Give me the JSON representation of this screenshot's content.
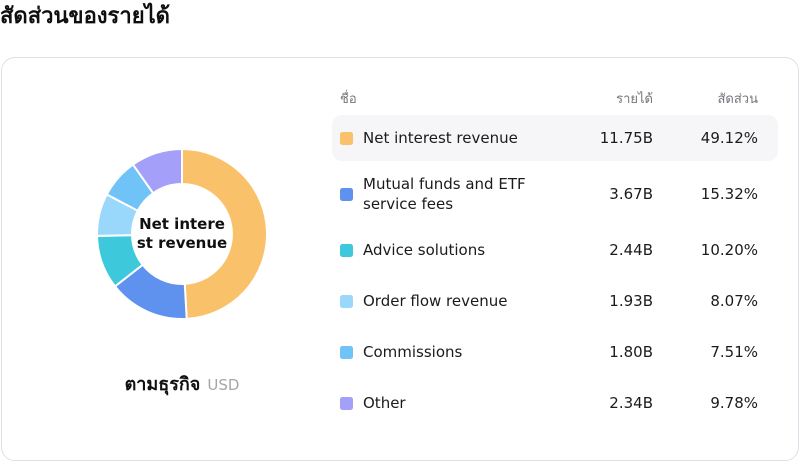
{
  "page_title": "สัดส่วนของรายได้",
  "card": {
    "table": {
      "headers": {
        "name": "ชื่อ",
        "revenue": "รายได้",
        "share": "สัดส่วน"
      },
      "rows": [
        {
          "name": "Net interest revenue",
          "revenue": "11.75B",
          "share": "49.12%",
          "color": "#F9C169"
        },
        {
          "name": "Mutual funds and ETF service fees",
          "revenue": "3.67B",
          "share": "15.32%",
          "color": "#5F92EF"
        },
        {
          "name": "Advice solutions",
          "revenue": "2.44B",
          "share": "10.20%",
          "color": "#3EC8DC"
        },
        {
          "name": "Order flow revenue",
          "revenue": "1.93B",
          "share": "8.07%",
          "color": "#99D8FB"
        },
        {
          "name": "Commissions",
          "revenue": "1.80B",
          "share": "7.51%",
          "color": "#6FC3F7"
        },
        {
          "name": "Other",
          "revenue": "2.34B",
          "share": "9.78%",
          "color": "#A4A0F9"
        }
      ]
    },
    "caption": {
      "label": "ตามธุรกิจ",
      "unit": "USD"
    }
  },
  "chart_data": {
    "type": "pie",
    "donut": true,
    "title": "สัดส่วนของรายได้",
    "categories": [
      "Net interest revenue",
      "Mutual funds and ETF service fees",
      "Advice solutions",
      "Order flow revenue",
      "Commissions",
      "Other"
    ],
    "values_pct": [
      49.12,
      15.32,
      10.2,
      8.07,
      7.51,
      9.78
    ],
    "revenues": [
      "11.75B",
      "3.67B",
      "2.44B",
      "1.93B",
      "1.80B",
      "2.34B"
    ],
    "colors": [
      "#F9C169",
      "#5F92EF",
      "#3EC8DC",
      "#99D8FB",
      "#6FC3F7",
      "#A4A0F9"
    ],
    "center_label_lines": [
      "Net intere",
      "st revenue"
    ],
    "unit": "USD",
    "legend_position": "right-table",
    "start_angle_deg": 0,
    "direction": "clockwise"
  }
}
